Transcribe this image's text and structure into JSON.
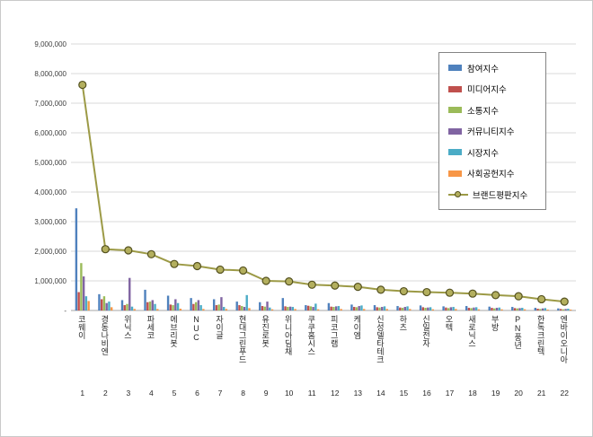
{
  "frame": {
    "background": "#ffffff",
    "border_color": "#c9c9c9"
  },
  "chart_data": {
    "type": "bar",
    "subtype": "grouped-bars-with-line",
    "title": "",
    "xlabel": "",
    "ylabel": "",
    "grid": true,
    "legend_position": "top-right",
    "categories": [
      "코웨이",
      "경동나비엔",
      "위닉스",
      "파세코",
      "에브리봇",
      "NUC",
      "자이글",
      "현대그린푸드",
      "유진로봇",
      "위니아딤채",
      "쿠쿠홈시스",
      "피코그램",
      "케이엠",
      "신성델타테크",
      "하츠",
      "신일전자",
      "오텍",
      "새로닉스",
      "부방",
      "PN풍년",
      "한독크린텍",
      "엔바이오니아"
    ],
    "category_numbers": [
      "1",
      "2",
      "3",
      "4",
      "5",
      "6",
      "7",
      "8",
      "9",
      "10",
      "11",
      "12",
      "13",
      "14",
      "15",
      "16",
      "17",
      "18",
      "19",
      "20",
      "21",
      "22"
    ],
    "y_axis": {
      "min": 0,
      "max": 9000000,
      "step": 1000000,
      "zero_label": "-",
      "tick_labels": [
        "-",
        "1,000,000",
        "2,000,000",
        "3,000,000",
        "4,000,000",
        "5,000,000",
        "6,000,000",
        "7,000,000",
        "8,000,000",
        "9,000,000"
      ]
    },
    "series": [
      {
        "name": "참여지수",
        "type": "bar",
        "color": "#4F81BD",
        "values": [
          3450000,
          550000,
          350000,
          700000,
          500000,
          420000,
          380000,
          300000,
          280000,
          420000,
          180000,
          250000,
          200000,
          180000,
          150000,
          170000,
          140000,
          150000,
          130000,
          120000,
          90000,
          70000
        ]
      },
      {
        "name": "미디어지수",
        "type": "bar",
        "color": "#C0504D",
        "values": [
          620000,
          380000,
          180000,
          280000,
          200000,
          220000,
          180000,
          180000,
          150000,
          140000,
          160000,
          130000,
          120000,
          110000,
          100000,
          110000,
          100000,
          90000,
          90000,
          80000,
          60000,
          50000
        ]
      },
      {
        "name": "소통지수",
        "type": "bar",
        "color": "#9BBB59",
        "values": [
          1600000,
          480000,
          220000,
          300000,
          180000,
          280000,
          200000,
          150000,
          130000,
          120000,
          140000,
          120000,
          110000,
          100000,
          90000,
          90000,
          80000,
          80000,
          70000,
          70000,
          50000,
          40000
        ]
      },
      {
        "name": "커뮤니티지수",
        "type": "bar",
        "color": "#8064A2",
        "values": [
          1150000,
          250000,
          1100000,
          350000,
          380000,
          350000,
          450000,
          120000,
          300000,
          130000,
          120000,
          140000,
          150000,
          120000,
          120000,
          100000,
          110000,
          100000,
          90000,
          80000,
          70000,
          50000
        ]
      },
      {
        "name": "시장지수",
        "type": "bar",
        "color": "#4BACC6",
        "values": [
          480000,
          300000,
          130000,
          220000,
          250000,
          180000,
          120000,
          520000,
          100000,
          120000,
          230000,
          150000,
          170000,
          140000,
          140000,
          110000,
          120000,
          110000,
          100000,
          90000,
          80000,
          60000
        ]
      },
      {
        "name": "사회공헌지수",
        "type": "bar",
        "color": "#F79646",
        "values": [
          320000,
          110000,
          50000,
          50000,
          60000,
          50000,
          50000,
          80000,
          40000,
          50000,
          40000,
          50000,
          50000,
          50000,
          50000,
          40000,
          50000,
          40000,
          40000,
          40000,
          30000,
          30000
        ]
      },
      {
        "name": "브랜드평판지수",
        "type": "line",
        "color": "#9C9A46",
        "marker_fill": "#B3AF5E",
        "marker_stroke": "#54511F",
        "values": [
          7620000,
          2070000,
          2030000,
          1900000,
          1570000,
          1500000,
          1380000,
          1350000,
          1000000,
          980000,
          870000,
          840000,
          800000,
          700000,
          650000,
          620000,
          600000,
          570000,
          520000,
          480000,
          380000,
          300000
        ]
      }
    ]
  },
  "legend": {
    "items": [
      "참여지수",
      "미디어지수",
      "소통지수",
      "커뮤니티지수",
      "시장지수",
      "사회공헌지수",
      "브랜드평판지수"
    ]
  },
  "colors": {
    "gridline": "#DADADA",
    "axis_line": "#A6A6A6",
    "axis_text": "#404040"
  }
}
